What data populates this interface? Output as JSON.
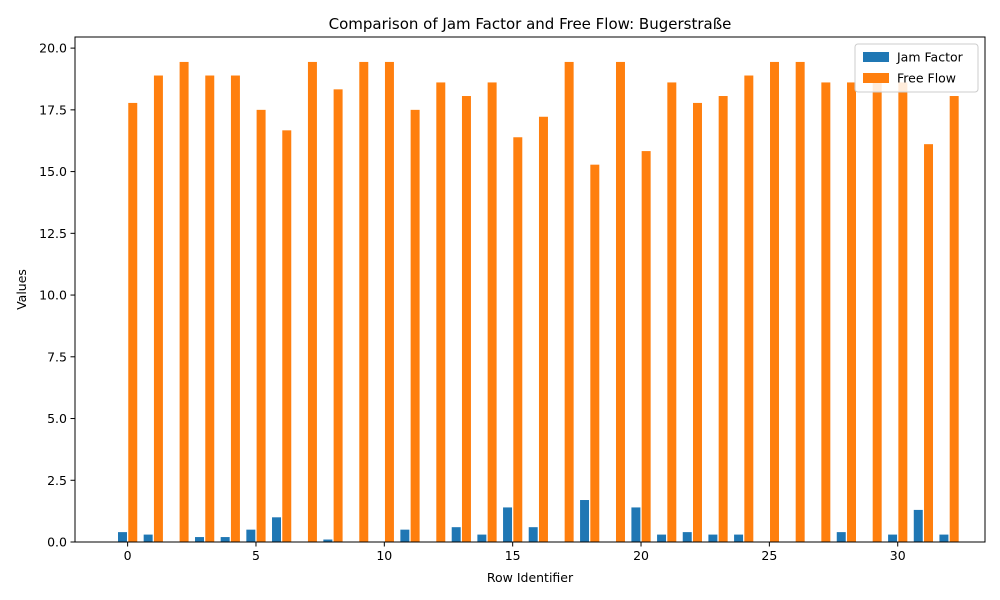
{
  "chart_data": {
    "type": "bar",
    "title": "Comparison of Jam Factor and Free Flow: Bugerstraße",
    "xlabel": "Row Identifier",
    "ylabel": "Values",
    "x": [
      0,
      1,
      2,
      3,
      4,
      5,
      6,
      7,
      8,
      9,
      10,
      11,
      12,
      13,
      14,
      15,
      16,
      17,
      18,
      19,
      20,
      21,
      22,
      23,
      24,
      25,
      26,
      27,
      28,
      29,
      30,
      31,
      32
    ],
    "xticks": [
      0,
      5,
      10,
      15,
      20,
      25,
      30
    ],
    "yticks": [
      0.0,
      2.5,
      5.0,
      7.5,
      10.0,
      12.5,
      15.0,
      17.5,
      20.0
    ],
    "ytick_labels": [
      "0.0",
      "2.5",
      "5.0",
      "7.5",
      "10.0",
      "12.5",
      "15.0",
      "17.5",
      "20.0"
    ],
    "xlim": [
      -2.05,
      33.4
    ],
    "ylim": [
      0,
      20.45
    ],
    "legend_position": "top-right",
    "series": [
      {
        "name": "Jam Factor",
        "color": "#1f77b4",
        "values": [
          0.4,
          0.3,
          0.0,
          0.2,
          0.2,
          0.5,
          1.0,
          0.0,
          0.1,
          0.0,
          0.0,
          0.5,
          0.0,
          0.6,
          0.3,
          1.4,
          0.6,
          0.0,
          1.7,
          0.0,
          1.4,
          0.3,
          0.4,
          0.3,
          0.3,
          0.0,
          0.0,
          0.0,
          0.4,
          0.0,
          0.3,
          1.3,
          0.3
        ]
      },
      {
        "name": "Free Flow",
        "color": "#ff7f0e",
        "values": [
          17.78,
          18.89,
          19.44,
          18.89,
          18.89,
          17.5,
          16.67,
          19.44,
          18.33,
          19.44,
          19.44,
          17.5,
          18.61,
          18.06,
          18.61,
          16.39,
          17.22,
          19.44,
          15.28,
          19.44,
          15.83,
          18.61,
          17.78,
          18.06,
          18.89,
          19.44,
          19.44,
          18.61,
          18.61,
          18.61,
          18.61,
          16.11,
          18.06
        ]
      }
    ]
  }
}
